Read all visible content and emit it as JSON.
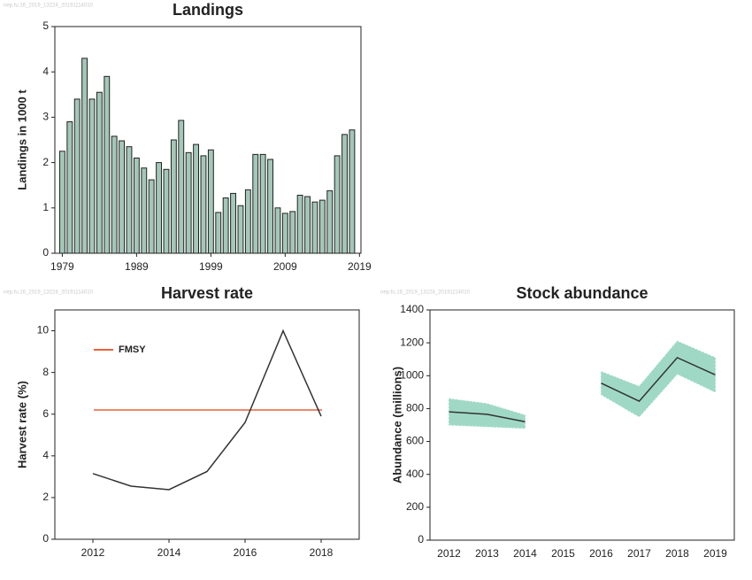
{
  "chart_data": [
    {
      "type": "bar",
      "title": "Landings",
      "source": "nep.fu.16_2019_13224_20191114010",
      "ylabel": "Landings in 1000 t",
      "x": [
        1979,
        1980,
        1981,
        1982,
        1983,
        1984,
        1985,
        1986,
        1987,
        1988,
        1989,
        1990,
        1991,
        1992,
        1993,
        1994,
        1995,
        1996,
        1997,
        1998,
        1999,
        2000,
        2001,
        2002,
        2003,
        2004,
        2005,
        2006,
        2007,
        2008,
        2009,
        2010,
        2011,
        2012,
        2013,
        2014,
        2015,
        2016,
        2017,
        2018
      ],
      "values": [
        2.25,
        2.9,
        3.4,
        4.3,
        3.4,
        3.55,
        3.9,
        2.58,
        2.48,
        2.35,
        2.1,
        1.88,
        1.62,
        2.0,
        1.85,
        2.5,
        2.93,
        2.22,
        2.4,
        2.15,
        2.28,
        0.9,
        1.22,
        1.32,
        1.05,
        1.4,
        2.18,
        2.18,
        2.07,
        1.0,
        0.88,
        0.92,
        1.28,
        1.25,
        1.13,
        1.17,
        1.38,
        2.15,
        2.62,
        2.72
      ],
      "color": "#a3c7b8",
      "xlim": [
        1978,
        2019.2
      ],
      "xticks": [
        1979,
        1989,
        1999,
        2009,
        2019
      ],
      "ylim": [
        0,
        5
      ],
      "yticks": [
        0,
        1,
        2,
        3,
        4,
        5
      ]
    },
    {
      "type": "line",
      "title": "Harvest rate",
      "source": "nep.fu.16_2019_13224_20191114010",
      "ylabel": "Harvest rate (%)",
      "x": [
        2012,
        2013,
        2014,
        2015,
        2016,
        2017,
        2018
      ],
      "values": [
        3.15,
        2.55,
        2.38,
        3.25,
        5.6,
        10.0,
        5.9
      ],
      "color": "#333333",
      "reference": {
        "name": "FMSY",
        "value": 6.2,
        "color": "#e8623a"
      },
      "legend": "upper-left",
      "xlim": [
        2011,
        2019
      ],
      "xticks": [
        2012,
        2014,
        2016,
        2018
      ],
      "ylim": [
        0,
        11
      ],
      "yticks": [
        0,
        2,
        4,
        6,
        8,
        10
      ]
    },
    {
      "type": "line",
      "title": "Stock abundance",
      "source": "nep.fu.16_2019_13224_20191114010",
      "ylabel": "Abundance (millions)",
      "categories": [
        "2012",
        "2013",
        "2014",
        "2015",
        "2016",
        "2017",
        "2018",
        "2019"
      ],
      "values": [
        780,
        765,
        720,
        null,
        955,
        845,
        1110,
        1005
      ],
      "low": [
        700,
        690,
        680,
        null,
        885,
        750,
        1010,
        900
      ],
      "high": [
        860,
        830,
        760,
        null,
        1025,
        935,
        1210,
        1110
      ],
      "color": "#333333",
      "band_color": "#9fd9c5",
      "ylim": [
        0,
        1400
      ],
      "yticks": [
        0,
        200,
        400,
        600,
        800,
        1000,
        1200,
        1400
      ]
    }
  ]
}
